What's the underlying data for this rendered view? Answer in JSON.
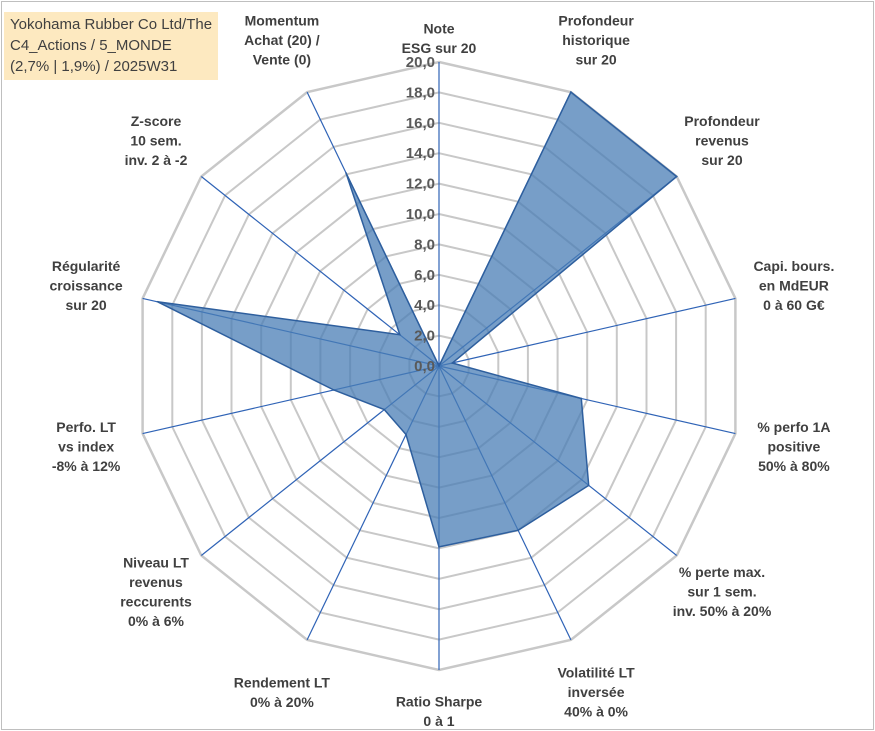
{
  "title_lines": [
    "Yokohama Rubber Co Ltd/The",
    "C4_Actions / 5_MONDE",
    "(2,7% | 1,9%) / 2025W31"
  ],
  "colors": {
    "fill": "#4a7db5",
    "fill_opacity": 0.75,
    "stroke": "#2e5f9e",
    "grid": "#c8c8c8",
    "spokes": "#2f63b6",
    "title_bg": "#fde9c0"
  },
  "chart_data": {
    "type": "radar",
    "title": "Yokohama Rubber Co Ltd/The C4_Actions / 5_MONDE (2,7% | 1,9%) / 2025W31",
    "rlim": [
      0,
      20
    ],
    "r_step": 2,
    "r_ticks": [
      "0,0",
      "2,0",
      "4,0",
      "6,0",
      "8,0",
      "10,0",
      "12,0",
      "14,0",
      "16,0",
      "18,0",
      "20,0"
    ],
    "grid": true,
    "categories": [
      [
        "Note",
        "ESG sur 20"
      ],
      [
        "Profondeur",
        "historique",
        "sur 20"
      ],
      [
        "Profondeur",
        "revenus",
        "sur 20"
      ],
      [
        "Capi. bours.",
        "en MdEUR",
        "0 à 60 G€"
      ],
      [
        "% perfo 1A",
        "positive",
        "50% à 80%"
      ],
      [
        "% perte max.",
        "sur 1 sem.",
        "inv. 50% à 20%"
      ],
      [
        "Volatilité LT",
        "inversée",
        "40% à 0%"
      ],
      [
        "Ratio Sharpe",
        "0 à 1"
      ],
      [
        "Rendement LT",
        "0% à 20%"
      ],
      [
        "Niveau LT",
        "revenus",
        "reccurents",
        "0% à 6%"
      ],
      [
        "Perfo. LT",
        "vs index",
        "-8% à 12%"
      ],
      [
        "Régularité",
        "croissance",
        "sur 20"
      ],
      [
        "Z-score",
        "10 sem.",
        "inv. 2 à -2"
      ],
      [
        "Momentum",
        "Achat (20) /",
        "Vente (0)"
      ]
    ],
    "series": [
      {
        "values": [
          0.0,
          20.0,
          20.0,
          0.9,
          9.6,
          12.6,
          12.0,
          11.9,
          5.0,
          4.6,
          7.1,
          19.0,
          3.3,
          14.1
        ]
      }
    ]
  }
}
